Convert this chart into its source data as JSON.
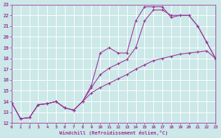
{
  "xlabel": "Windchill (Refroidissement éolien,°C)",
  "background_color": "#cce8e8",
  "grid_color": "#ffffff",
  "line_color": "#993399",
  "xlim": [
    0,
    23
  ],
  "ylim": [
    12,
    23
  ],
  "xticks": [
    0,
    1,
    2,
    3,
    4,
    5,
    6,
    7,
    8,
    9,
    10,
    11,
    12,
    13,
    14,
    15,
    16,
    17,
    18,
    19,
    20,
    21,
    22,
    23
  ],
  "yticks": [
    12,
    13,
    14,
    15,
    16,
    17,
    18,
    19,
    20,
    21,
    22,
    23
  ],
  "lines": [
    {
      "x": [
        0,
        1,
        2,
        3,
        4,
        5,
        6,
        7,
        8,
        9,
        10,
        11,
        12,
        13,
        14,
        15,
        16,
        17,
        18,
        19,
        20,
        21,
        22,
        23
      ],
      "y": [
        13.9,
        12.4,
        12.5,
        13.7,
        13.8,
        14.0,
        13.4,
        13.2,
        14.0,
        14.8,
        15.3,
        15.7,
        16.1,
        16.5,
        17.0,
        17.4,
        17.8,
        18.0,
        18.2,
        18.4,
        18.5,
        18.6,
        18.7,
        18.0
      ]
    },
    {
      "x": [
        0,
        1,
        2,
        3,
        4,
        5,
        6,
        7,
        8,
        9,
        10,
        11,
        12,
        13,
        14,
        15,
        16,
        17,
        18,
        19,
        20,
        21,
        22,
        23
      ],
      "y": [
        13.9,
        12.4,
        12.5,
        13.7,
        13.8,
        14.0,
        13.4,
        13.2,
        14.0,
        15.3,
        16.5,
        17.1,
        17.5,
        17.9,
        19.0,
        21.5,
        22.5,
        22.5,
        22.0,
        22.0,
        22.0,
        21.0,
        19.5,
        18.0
      ]
    },
    {
      "x": [
        0,
        1,
        2,
        3,
        4,
        5,
        6,
        7,
        8,
        9,
        10,
        11,
        12,
        13,
        14,
        15,
        16,
        17,
        18,
        19,
        20,
        21,
        22,
        23
      ],
      "y": [
        13.9,
        12.4,
        12.5,
        13.7,
        13.8,
        14.0,
        13.4,
        13.2,
        14.0,
        15.5,
        18.5,
        19.0,
        18.5,
        18.5,
        21.5,
        22.8,
        22.8,
        22.8,
        21.8,
        22.0,
        22.0,
        21.0,
        19.5,
        18.0
      ]
    }
  ],
  "figsize": [
    3.2,
    2.0
  ],
  "dpi": 100
}
